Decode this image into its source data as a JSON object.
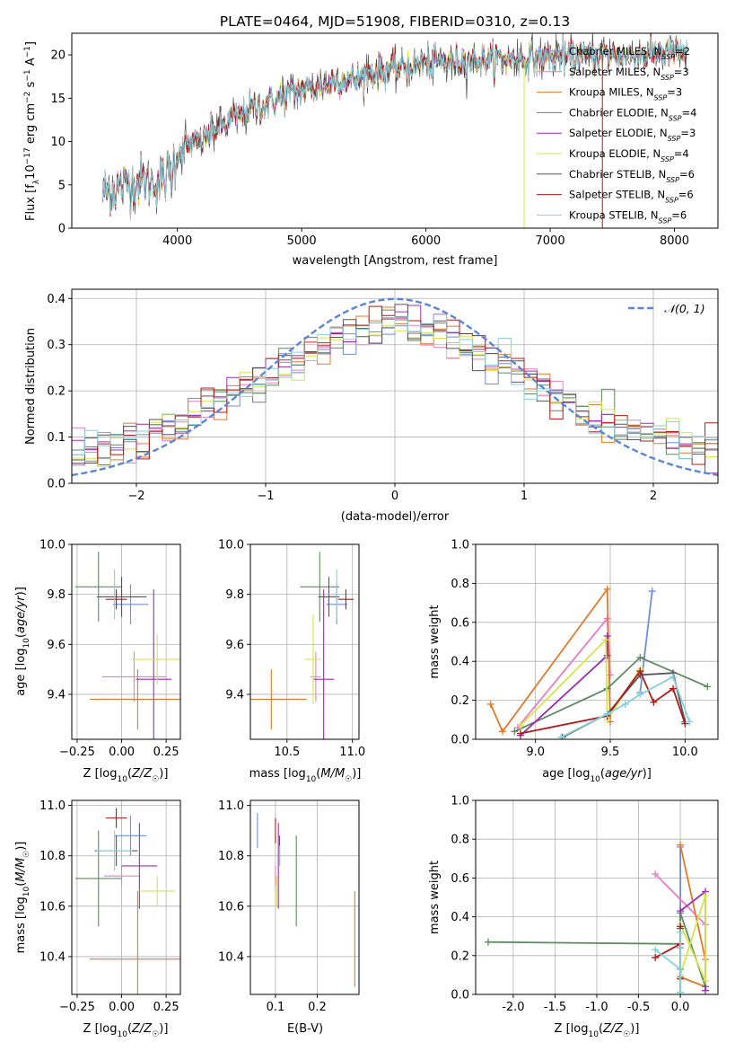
{
  "figure_title": "PLATE=0464, MJD=51908, FIBERID=0310, z=0.13",
  "colors": {
    "chabrier_miles": "#6f8fd8",
    "salpeter_miles": "#e87ec3",
    "kroupa_miles": "#e07a2c",
    "chabrier_elodie": "#5f8a64",
    "salpeter_elodie": "#9a2fb0",
    "kroupa_elodie": "#d5e648",
    "chabrier_stelib": "#555555",
    "salpeter_stelib": "#b01a1a",
    "kroupa_stelib": "#86d0dc",
    "normal": "#5b86d6"
  },
  "chart_data": [
    {
      "id": "spectrum",
      "type": "line",
      "title": "PLATE=0464, MJD=51908, FIBERID=0310, z=0.13",
      "xlabel": "wavelength [Angstrom, rest frame]",
      "ylabel": "Flux [f_λ 10^-17 erg cm^-2 s^-1 A^-1]",
      "xlim": [
        3150,
        8350
      ],
      "ylim": [
        0,
        22.5
      ],
      "xticks": [
        4000,
        5000,
        6000,
        7000,
        8000
      ],
      "yticks": [
        0,
        5,
        10,
        15,
        20
      ],
      "grid": false,
      "legend_position": "top-right",
      "legend": [
        {
          "label": "Chabrier MILES, N",
          "sub": "SSP",
          "suffix": "=2",
          "color_key": "chabrier_miles"
        },
        {
          "label": "Salpeter MILES, N",
          "sub": "SSP",
          "suffix": "=3",
          "color_key": "salpeter_miles"
        },
        {
          "label": "Kroupa MILES, N",
          "sub": "SSP",
          "suffix": "=3",
          "color_key": "kroupa_miles"
        },
        {
          "label": "Chabrier ELODIE, N",
          "sub": "SSP",
          "suffix": "=4",
          "color_key": "chabrier_elodie"
        },
        {
          "label": "Salpeter ELODIE, N",
          "sub": "SSP",
          "suffix": "=3",
          "color_key": "salpeter_elodie"
        },
        {
          "label": "Kroupa ELODIE, N",
          "sub": "SSP",
          "suffix": "=4",
          "color_key": "kroupa_elodie"
        },
        {
          "label": "Chabrier STELIB, N",
          "sub": "SSP",
          "suffix": "=6",
          "color_key": "chabrier_stelib"
        },
        {
          "label": "Salpeter STELIB, N",
          "sub": "SSP",
          "suffix": "=6",
          "color_key": "salpeter_stelib"
        },
        {
          "label": "Kroupa STELIB, N",
          "sub": "SSP",
          "suffix": "=6",
          "color_key": "kroupa_stelib"
        }
      ],
      "continuum": {
        "x": [
          3400,
          3500,
          3600,
          3700,
          3800,
          3900,
          3950,
          4000,
          4100,
          4200,
          4300,
          4400,
          4500,
          4600,
          4700,
          4800,
          4900,
          5000,
          5100,
          5200,
          5300,
          5400,
          5500,
          5600,
          5700,
          5800,
          5900,
          6000,
          6200,
          6400,
          6600,
          6800,
          7000,
          7200,
          7400,
          7600,
          7800,
          8000,
          8100
        ],
        "y": [
          4.2,
          4.5,
          5.0,
          5.5,
          5.3,
          5.8,
          6.5,
          8.8,
          9.6,
          10.2,
          11.2,
          12.2,
          13.0,
          13.8,
          14.2,
          14.8,
          15.5,
          16.0,
          16.2,
          16.5,
          17.2,
          17.0,
          17.6,
          18.0,
          18.4,
          18.6,
          18.8,
          19.0,
          19.2,
          19.4,
          19.6,
          19.5,
          19.8,
          19.8,
          20.0,
          19.9,
          20.1,
          20.3,
          20.3
        ]
      },
      "data_noise_level": 1.0,
      "artifacts": [
        {
          "x": 6790,
          "ymin": 0,
          "color_key": "kroupa_elodie"
        },
        {
          "x": 7420,
          "ymin": 0,
          "color_key": "salpeter_stelib"
        }
      ]
    },
    {
      "id": "residuals",
      "type": "histogram",
      "xlabel": "(data-model)/error",
      "ylabel": "Normed distribution",
      "xlim": [
        -2.5,
        2.5
      ],
      "ylim": [
        0,
        0.42
      ],
      "xticks": [
        -2,
        -1,
        0,
        1,
        2
      ],
      "yticks": [
        0.0,
        0.1,
        0.2,
        0.3,
        0.4
      ],
      "grid": true,
      "legend_position": "top-right",
      "legend_label": "𝒩(0, 1)",
      "bin_width": 0.1,
      "reference_curve": {
        "type": "normal",
        "mean": 0,
        "sigma": 1
      }
    },
    {
      "id": "age-vs-Z",
      "type": "errorbar",
      "xlabel": "Z [log10(Z/Z☉)]",
      "ylabel": "age [log10(age/yr)]",
      "xlim": [
        -0.28,
        0.33
      ],
      "ylim": [
        9.22,
        10.0
      ],
      "xticks": [
        -0.25,
        0.0,
        0.25
      ],
      "yticks": [
        9.4,
        9.6,
        9.8,
        10.0
      ],
      "grid": true,
      "points": [
        {
          "color_key": "chabrier_miles",
          "x": 0.05,
          "xerr": 0.1,
          "y": 9.76,
          "yerr": 0.08
        },
        {
          "color_key": "salpeter_miles",
          "x": 0.07,
          "xerr": 0.18,
          "y": 9.47,
          "yerr": 0.1
        },
        {
          "color_key": "kroupa_miles",
          "x": 0.09,
          "xerr": 0.27,
          "y": 9.38,
          "yerr": 0.12
        },
        {
          "color_key": "chabrier_elodie",
          "x": -0.13,
          "xerr": 0.13,
          "y": 9.83,
          "yerr": 0.14
        },
        {
          "color_key": "salpeter_elodie",
          "x": 0.18,
          "xerr": 0.1,
          "y": 9.46,
          "yerr": 0.36
        },
        {
          "color_key": "kroupa_elodie",
          "x": 0.2,
          "xerr": 0.14,
          "y": 9.54,
          "yerr": 0.1
        },
        {
          "color_key": "chabrier_stelib",
          "x": 0.0,
          "xerr": 0.14,
          "y": 9.79,
          "yerr": 0.08
        },
        {
          "color_key": "salpeter_stelib",
          "x": -0.03,
          "xerr": 0.06,
          "y": 9.78,
          "yerr": 0.04
        },
        {
          "color_key": "kroupa_stelib",
          "x": -0.04,
          "xerr": 0.0,
          "y": 9.8,
          "yerr": 0.1
        }
      ]
    },
    {
      "id": "age-vs-mass",
      "type": "errorbar",
      "xlabel": "mass [log10(M/M☉)]",
      "ylabel": "",
      "xlim": [
        10.22,
        11.05
      ],
      "ylim": [
        9.22,
        10.0
      ],
      "xticks": [
        10.5,
        11.0
      ],
      "yticks": [
        9.4,
        9.6,
        9.8,
        10.0
      ],
      "grid": true,
      "points": [
        {
          "color_key": "chabrier_miles",
          "x": 10.88,
          "xerr": 0.08,
          "y": 9.76,
          "yerr": 0.08
        },
        {
          "color_key": "salpeter_miles",
          "x": 10.72,
          "xerr": 0.04,
          "y": 9.47,
          "yerr": 0.1
        },
        {
          "color_key": "kroupa_miles",
          "x": 10.38,
          "xerr": 0.27,
          "y": 9.38,
          "yerr": 0.12
        },
        {
          "color_key": "chabrier_elodie",
          "x": 10.75,
          "xerr": 0.15,
          "y": 9.83,
          "yerr": 0.14
        },
        {
          "color_key": "salpeter_elodie",
          "x": 10.78,
          "xerr": 0.08,
          "y": 9.46,
          "yerr": 0.36
        },
        {
          "color_key": "kroupa_elodie",
          "x": 10.7,
          "xerr": 0.06,
          "y": 9.54,
          "yerr": 0.18
        },
        {
          "color_key": "chabrier_stelib",
          "x": 10.82,
          "xerr": 0.08,
          "y": 9.79,
          "yerr": 0.08
        },
        {
          "color_key": "salpeter_stelib",
          "x": 10.95,
          "xerr": 0.06,
          "y": 9.78,
          "yerr": 0.04
        },
        {
          "color_key": "kroupa_stelib",
          "x": 10.88,
          "xerr": 0.06,
          "y": 9.8,
          "yerr": 0.1
        }
      ]
    },
    {
      "id": "weight-vs-age",
      "type": "line",
      "xlabel": "age [log10(age/yr)]",
      "ylabel": "mass weight",
      "xlim": [
        8.6,
        10.22
      ],
      "ylim": [
        0,
        1.0
      ],
      "xticks": [
        9.0,
        9.5,
        10.0
      ],
      "yticks": [
        0.0,
        0.2,
        0.4,
        0.6,
        0.8,
        1.0
      ],
      "grid": true,
      "series": [
        {
          "color_key": "chabrier_miles",
          "x": [
            9.78,
            9.7
          ],
          "y": [
            0.76,
            0.24
          ]
        },
        {
          "color_key": "salpeter_miles",
          "x": [
            8.88,
            9.48,
            9.5
          ],
          "y": [
            0.06,
            0.62,
            0.33
          ]
        },
        {
          "color_key": "kroupa_miles",
          "x": [
            8.7,
            8.78,
            9.48,
            9.5
          ],
          "y": [
            0.18,
            0.04,
            0.77,
            0.09
          ]
        },
        {
          "color_key": "chabrier_elodie",
          "x": [
            8.86,
            9.48,
            9.7,
            10.15
          ],
          "y": [
            0.04,
            0.26,
            0.42,
            0.27
          ]
        },
        {
          "color_key": "salpeter_elodie",
          "x": [
            8.9,
            9.48,
            9.48
          ],
          "y": [
            0.02,
            0.43,
            0.53
          ]
        },
        {
          "color_key": "kroupa_elodie",
          "x": [
            8.9,
            9.47,
            9.48,
            9.7
          ],
          "y": [
            0.07,
            0.51,
            0.1,
            0.36
          ]
        },
        {
          "color_key": "chabrier_stelib",
          "x": [
            9.18,
            9.48,
            9.7,
            9.92,
            10.0
          ],
          "y": [
            0.01,
            0.13,
            0.33,
            0.34,
            0.09
          ]
        },
        {
          "color_key": "salpeter_stelib",
          "x": [
            8.9,
            9.48,
            9.7,
            9.79,
            9.92,
            10.0
          ],
          "y": [
            0.03,
            0.12,
            0.35,
            0.19,
            0.26,
            0.08
          ]
        },
        {
          "color_key": "kroupa_stelib",
          "x": [
            9.17,
            9.48,
            9.6,
            9.7,
            9.92,
            10.03
          ],
          "y": [
            0.01,
            0.13,
            0.18,
            0.23,
            0.32,
            0.09
          ]
        }
      ]
    },
    {
      "id": "mass-vs-Z",
      "type": "errorbar",
      "xlabel": "Z [log10(Z/Z☉)]",
      "ylabel": "mass [log10(M/M☉)]",
      "xlim": [
        -0.28,
        0.33
      ],
      "ylim": [
        10.25,
        11.02
      ],
      "xticks": [
        -0.25,
        0.0,
        0.25
      ],
      "yticks": [
        10.4,
        10.6,
        10.8,
        11.0
      ],
      "grid": true,
      "points": [
        {
          "color_key": "chabrier_miles",
          "x": 0.05,
          "xerr": 0.09,
          "y": 10.88,
          "yerr": 0.08
        },
        {
          "color_key": "salpeter_miles",
          "x": 0.0,
          "xerr": 0.1,
          "y": 10.72,
          "yerr": 0.04
        },
        {
          "color_key": "kroupa_miles",
          "x": 0.09,
          "xerr": 0.27,
          "y": 10.39,
          "yerr": 0.27
        },
        {
          "color_key": "chabrier_elodie",
          "x": -0.13,
          "xerr": 0.13,
          "y": 10.71,
          "yerr": 0.19
        },
        {
          "color_key": "salpeter_elodie",
          "x": 0.1,
          "xerr": 0.1,
          "y": 10.76,
          "yerr": 0.17
        },
        {
          "color_key": "kroupa_elodie",
          "x": 0.2,
          "xerr": 0.1,
          "y": 10.66,
          "yerr": 0.06
        },
        {
          "color_key": "chabrier_stelib",
          "x": -0.03,
          "xerr": 0.12,
          "y": 10.82,
          "yerr": 0.06
        },
        {
          "color_key": "salpeter_stelib",
          "x": -0.03,
          "xerr": 0.06,
          "y": 10.95,
          "yerr": 0.04
        },
        {
          "color_key": "kroupa_stelib",
          "x": -0.04,
          "xerr": 0.1,
          "y": 10.82,
          "yerr": 0.08
        }
      ]
    },
    {
      "id": "mass-vs-ebv",
      "type": "errorbar",
      "xlabel": "E(B-V)",
      "ylabel": "",
      "xlim": [
        0.04,
        0.3
      ],
      "ylim": [
        10.25,
        11.02
      ],
      "xticks": [
        0.1,
        0.2
      ],
      "yticks": [
        10.4,
        10.6,
        10.8,
        11.0
      ],
      "grid": true,
      "points": [
        {
          "color_key": "chabrier_miles",
          "x": 0.057,
          "xerr": 0,
          "y": 10.9,
          "yerr": 0.07
        },
        {
          "color_key": "salpeter_miles",
          "x": 0.1,
          "xerr": 0,
          "y": 10.72,
          "yerr": 0.04
        },
        {
          "color_key": "kroupa_miles",
          "x": 0.29,
          "xerr": 0,
          "y": 10.47,
          "yerr": 0.19
        },
        {
          "color_key": "chabrier_elodie",
          "x": 0.15,
          "xerr": 0,
          "y": 10.7,
          "yerr": 0.18
        },
        {
          "color_key": "salpeter_elodie",
          "x": 0.107,
          "xerr": 0,
          "y": 10.76,
          "yerr": 0.17
        },
        {
          "color_key": "kroupa_elodie",
          "x": 0.103,
          "xerr": 0,
          "y": 10.66,
          "yerr": 0.06
        },
        {
          "color_key": "chabrier_stelib",
          "x": 0.11,
          "xerr": 0,
          "y": 10.82,
          "yerr": 0.06
        },
        {
          "color_key": "salpeter_stelib",
          "x": 0.1,
          "xerr": 0,
          "y": 10.9,
          "yerr": 0.05
        },
        {
          "color_key": "kroupa_stelib",
          "x": 0.11,
          "xerr": 0,
          "y": 10.8,
          "yerr": 0.04
        }
      ]
    },
    {
      "id": "weight-vs-Z",
      "type": "line",
      "xlabel": "Z [log10(Z/Z☉)]",
      "ylabel": "mass weight",
      "xlim": [
        -2.45,
        0.45
      ],
      "ylim": [
        0,
        1.0
      ],
      "xticks": [
        -2.0,
        -1.5,
        -1.0,
        -0.5,
        0.0
      ],
      "yticks": [
        0.0,
        0.2,
        0.4,
        0.6,
        0.8,
        1.0
      ],
      "grid": true,
      "series": [
        {
          "color_key": "chabrier_miles",
          "x": [
            0.0,
            0.0
          ],
          "y": [
            0.76,
            0.24
          ]
        },
        {
          "color_key": "salpeter_miles",
          "x": [
            -0.3,
            0.3,
            0.3
          ],
          "y": [
            0.62,
            0.36,
            0.04
          ]
        },
        {
          "color_key": "kroupa_miles",
          "x": [
            0.0,
            0.3,
            0.3,
            0.0
          ],
          "y": [
            0.77,
            0.18,
            0.04,
            0.09
          ]
        },
        {
          "color_key": "chabrier_elodie",
          "x": [
            -2.3,
            0.0,
            0.0,
            0.3
          ],
          "y": [
            0.27,
            0.26,
            0.42,
            0.04
          ]
        },
        {
          "color_key": "salpeter_elodie",
          "x": [
            0.0,
            0.3,
            0.3
          ],
          "y": [
            0.43,
            0.53,
            0.02
          ]
        },
        {
          "color_key": "kroupa_elodie",
          "x": [
            0.0,
            0.3,
            0.3,
            0.0
          ],
          "y": [
            0.1,
            0.51,
            0.07,
            0.36
          ]
        },
        {
          "color_key": "chabrier_stelib",
          "x": [
            0.0,
            0.0,
            0.0
          ],
          "y": [
            0.13,
            0.01,
            0.34
          ]
        },
        {
          "color_key": "salpeter_stelib",
          "x": [
            -0.3,
            0.0,
            0.0,
            0.0
          ],
          "y": [
            0.19,
            0.26,
            0.08,
            0.35
          ]
        },
        {
          "color_key": "kroupa_stelib",
          "x": [
            -0.3,
            0.0,
            0.0,
            0.0
          ],
          "y": [
            0.23,
            0.13,
            0.01,
            0.32
          ]
        }
      ]
    }
  ]
}
